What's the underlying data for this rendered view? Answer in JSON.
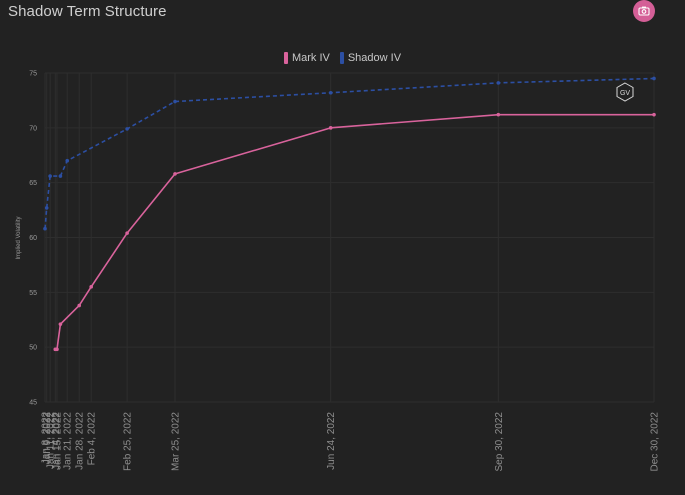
{
  "header": {
    "title": "Shadow Term Structure"
  },
  "toolbar": {
    "camera_icon": "camera-icon"
  },
  "watermark": {
    "text": "GV",
    "icon": "hexagon-logo-icon"
  },
  "colors": {
    "mark": "#d9639c",
    "shadow": "#2c4fa3",
    "background": "#222222",
    "grid": "#2e2e2e"
  },
  "chart_data": {
    "type": "line",
    "title": "Shadow Term Structure",
    "xlabel": "",
    "ylabel": "Implied Volatility",
    "ylim": [
      45,
      75
    ],
    "yticks": [
      45,
      50,
      55,
      60,
      65,
      70,
      75
    ],
    "x_dates": [
      "2022-01-08",
      "2022-01-09",
      "2022-01-11",
      "2022-01-14",
      "2022-01-15",
      "2022-01-21",
      "2022-01-28",
      "2022-02-04",
      "2022-02-25",
      "2022-03-25",
      "2022-06-24",
      "2022-09-30",
      "2022-12-30"
    ],
    "x_tick_labels": [
      "Jan 8, 2022",
      "Jan 9, 2022",
      "Jan 11, 2022",
      "Jan 14, 2022",
      "Jan 15, 2022",
      "Jan 21, 2022",
      "Jan 28, 2022",
      "Feb 4, 2022",
      "Feb 25, 2022",
      "Mar 25, 2022",
      "Jun 24, 2022",
      "Sep 30, 2022",
      "Dec 30, 2022"
    ],
    "legend_position": "top-center",
    "series": [
      {
        "name": "Mark IV",
        "style": "solid",
        "dates": [
          "2022-01-14",
          "2022-01-15",
          "2022-01-17",
          "2022-01-28",
          "2022-02-04",
          "2022-02-25",
          "2022-03-25",
          "2022-06-24",
          "2022-09-30",
          "2022-12-30"
        ],
        "values": [
          49.8,
          49.8,
          52.1,
          53.8,
          55.5,
          60.4,
          65.8,
          70.0,
          71.2,
          71.2
        ]
      },
      {
        "name": "Shadow IV",
        "style": "dashed",
        "dates": [
          "2022-01-08",
          "2022-01-09",
          "2022-01-11",
          "2022-01-17",
          "2022-01-21",
          "2022-02-25",
          "2022-03-25",
          "2022-06-24",
          "2022-09-30",
          "2022-12-30"
        ],
        "values": [
          60.8,
          62.7,
          65.6,
          65.6,
          67.0,
          69.9,
          72.4,
          73.2,
          74.1,
          74.5
        ]
      }
    ]
  }
}
